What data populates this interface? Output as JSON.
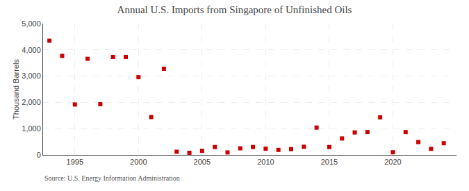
{
  "chart_data": {
    "type": "scatter",
    "title": "Annual U.S. Imports from Singapore of Unfinished Oils",
    "ylabel": "Thousand Barrels",
    "annotations": [
      "Source: U.S. Energy Information Administration"
    ],
    "x": [
      1993,
      1994,
      1995,
      1996,
      1997,
      1998,
      1999,
      2000,
      2001,
      2002,
      2003,
      2004,
      2005,
      2006,
      2007,
      2008,
      2009,
      2010,
      2011,
      2012,
      2013,
      2014,
      2015,
      2016,
      2017,
      2018,
      2019,
      2020,
      2021,
      2022,
      2023,
      2024
    ],
    "values": [
      4350,
      3770,
      1920,
      3660,
      1930,
      3730,
      3730,
      2960,
      1440,
      3280,
      120,
      80,
      155,
      300,
      95,
      250,
      300,
      235,
      190,
      220,
      310,
      1040,
      300,
      625,
      855,
      870,
      1430,
      100,
      870,
      490,
      230,
      445
    ],
    "color": "#cc0000",
    "marker": "square",
    "xlim": [
      1992.5,
      2025
    ],
    "xticks": [
      1995,
      2000,
      2005,
      2010,
      2015,
      2020
    ],
    "ylim": [
      0,
      5000
    ],
    "yticks": [
      0,
      {
        "value": 1000,
        "label": "1,000"
      },
      {
        "value": 2000,
        "label": "2,000"
      },
      {
        "value": 3000,
        "label": "3,000"
      },
      {
        "value": 4000,
        "label": "4,000"
      },
      {
        "value": 5000,
        "label": "5,000"
      }
    ],
    "grid": true
  }
}
